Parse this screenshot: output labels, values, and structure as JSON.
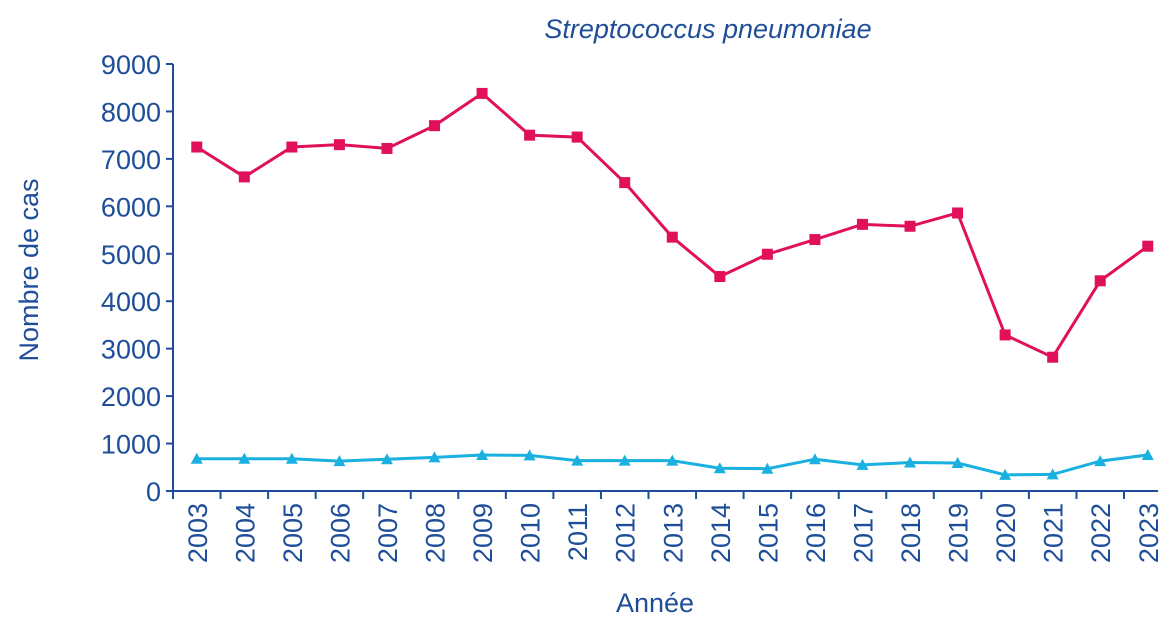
{
  "chart_data": {
    "type": "line",
    "title": "Streptococcus pneumoniae",
    "x_label": "Année",
    "y_label": "Nombre de cas",
    "categories": [
      "2003",
      "2004",
      "2005",
      "2006",
      "2007",
      "2008",
      "2009",
      "2010",
      "2011",
      "2012",
      "2013",
      "2014",
      "2015",
      "2016",
      "2017",
      "2018",
      "2019",
      "2020",
      "2021",
      "2022",
      "2023"
    ],
    "series": [
      {
        "color": "#e0105a",
        "marker": "square",
        "values": [
          7250,
          6620,
          7250,
          7300,
          7220,
          7700,
          8380,
          7500,
          7460,
          6500,
          5350,
          4520,
          4990,
          5300,
          5620,
          5580,
          5860,
          3290,
          2820,
          4430,
          5160
        ]
      },
      {
        "color": "#1ab0e0",
        "marker": "triangle",
        "values": [
          680,
          680,
          680,
          630,
          670,
          710,
          760,
          750,
          640,
          640,
          640,
          480,
          470,
          670,
          550,
          600,
          590,
          340,
          350,
          630,
          760
        ]
      }
    ],
    "ylim": [
      0,
      9000
    ],
    "yticks": [
      0,
      1000,
      2000,
      3000,
      4000,
      5000,
      6000,
      7000,
      8000,
      9000
    ],
    "grid": false
  }
}
